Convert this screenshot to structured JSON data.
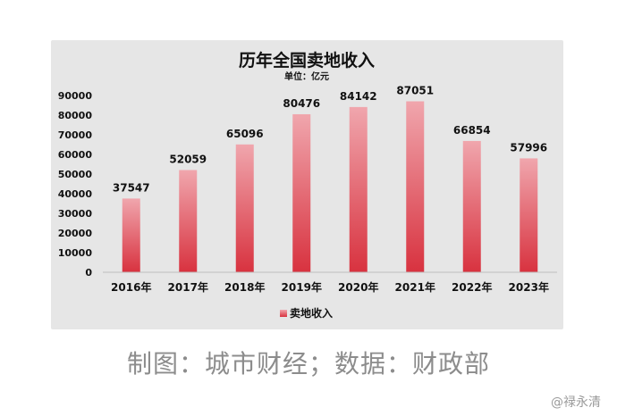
{
  "chart_data": {
    "type": "bar",
    "title": "历年全国卖地收入",
    "subtitle": "单位：亿元",
    "categories": [
      "2016年",
      "2017年",
      "2018年",
      "2019年",
      "2020年",
      "2021年",
      "2022年",
      "2023年"
    ],
    "series": [
      {
        "name": "卖地收入",
        "values": [
          37547,
          52059,
          65096,
          80476,
          84142,
          87051,
          66854,
          57996
        ]
      }
    ],
    "data_labels": [
      "37547",
      "52059",
      "65096",
      "80476",
      "84142",
      "87051",
      "66854",
      "57996"
    ],
    "yticks": [
      0,
      10000,
      20000,
      30000,
      40000,
      50000,
      60000,
      70000,
      80000,
      90000
    ],
    "ytick_labels": [
      "0",
      "10000",
      "20000",
      "30000",
      "40000",
      "50000",
      "60000",
      "70000",
      "80000",
      "90000"
    ],
    "ylim": [
      0,
      90000
    ],
    "grid": false,
    "legend_position": "bottom",
    "bar_color_top": "#f0a6ad",
    "bar_color_bottom": "#d8323f",
    "background_color": "#e6e6e6"
  },
  "caption": "制图：城市财经；数据：财政部",
  "watermark": "@禄永清"
}
